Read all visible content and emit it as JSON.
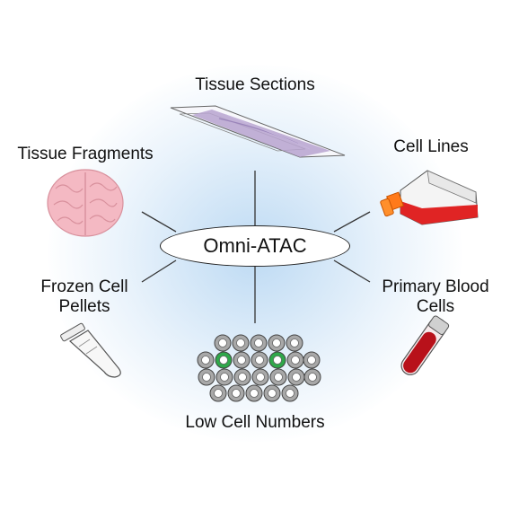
{
  "hub": {
    "label": "Omni-ATAC"
  },
  "nodes": {
    "tissue_sections": "Tissue Sections",
    "tissue_fragments": "Tissue Fragments",
    "cell_lines": "Cell Lines",
    "frozen_cell_pellets": [
      "Frozen Cell",
      "Pellets"
    ],
    "primary_blood_cells": [
      "Primary Blood",
      "Cells"
    ],
    "low_cell_numbers": "Low Cell Numbers"
  },
  "colors": {
    "connector": "#333333",
    "slide_stain": "#b7a3cf",
    "brain": "#f4b9c3",
    "flask_media": "#e02424",
    "flask_cap": "#ff7a1a",
    "blood": "#b8111a",
    "cell_gray": "#a8a8a8",
    "cell_green": "#2fa84a",
    "glow": "#b6d6f2"
  },
  "icons": [
    "slide-icon",
    "brain-icon",
    "flask-icon",
    "tube-icon",
    "blood-tube-icon",
    "cell-cluster-icon",
    "transposase-icon"
  ]
}
